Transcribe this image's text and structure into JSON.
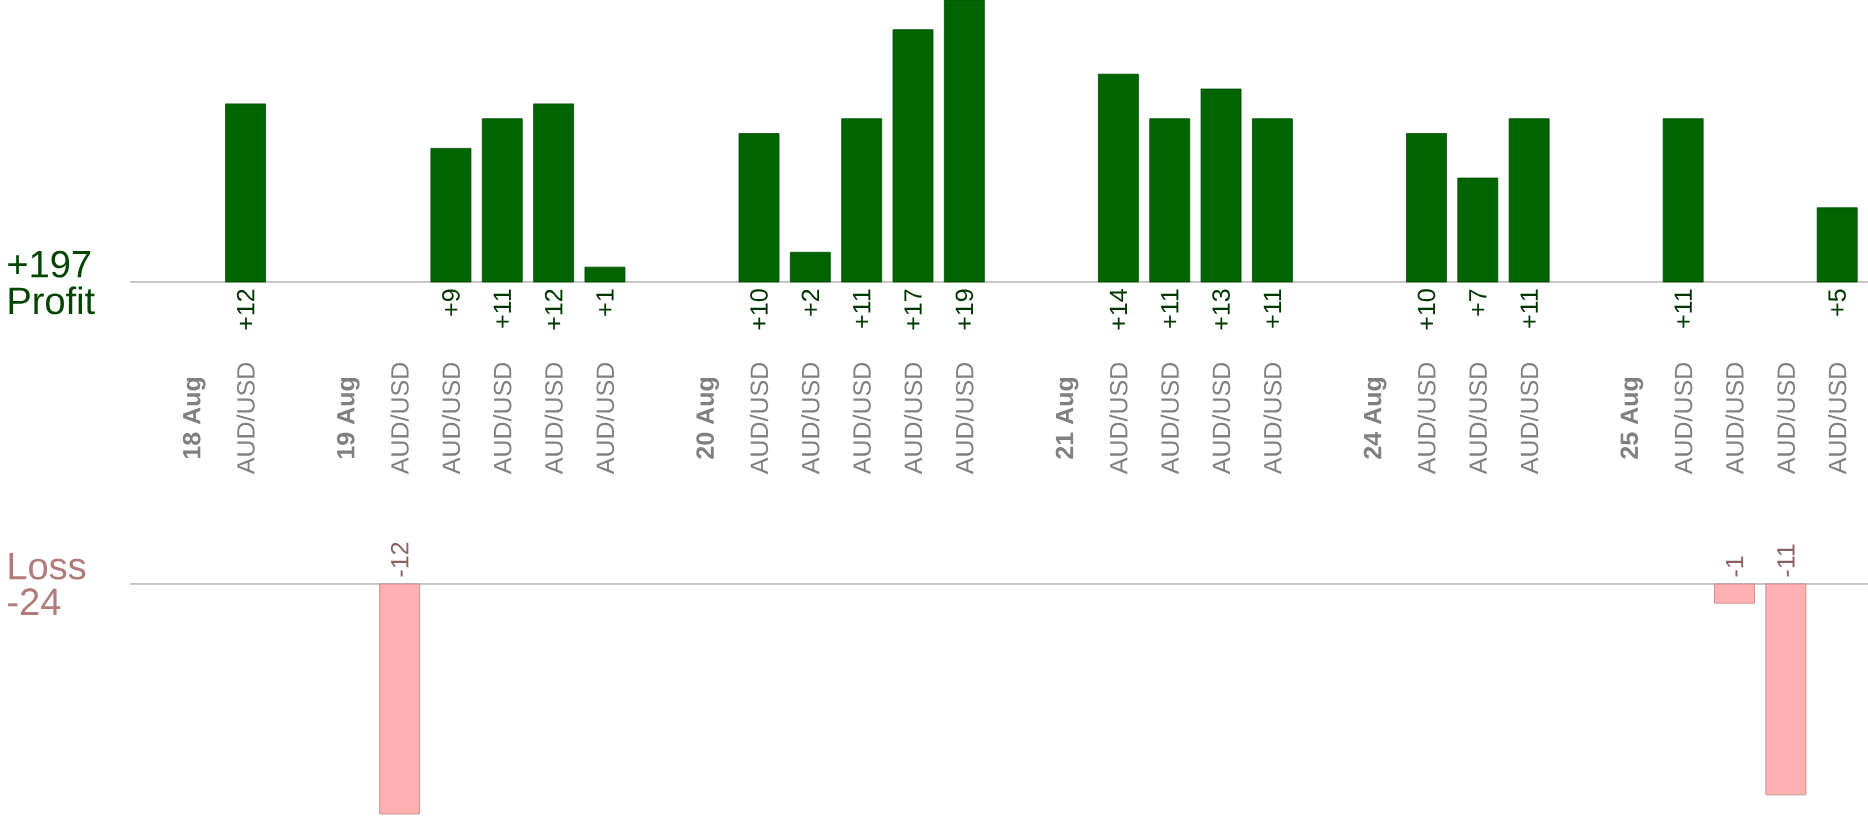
{
  "chart_data": [
    {
      "type": "bar",
      "categories": [
        null,
        "**18 Aug**",
        "AUD/USD",
        null,
        "**19 Aug**",
        "AUD/USD",
        "AUD/USD",
        "AUD/USD",
        "AUD/USD",
        "AUD/USD",
        null,
        "**20 Aug**",
        "AUD/USD",
        "AUD/USD",
        "AUD/USD",
        "AUD/USD",
        "AUD/USD",
        null,
        "**21 Aug**",
        "AUD/USD",
        "AUD/USD",
        "AUD/USD",
        "AUD/USD",
        null,
        "**24 Aug**",
        "AUD/USD",
        "AUD/USD",
        "AUD/USD",
        null,
        "**25 Aug**",
        "AUD/USD",
        "AUD/USD",
        "AUD/USD",
        "AUD/USD"
      ],
      "series": [
        {
          "color": "#006400",
          "values": [
            null,
            null,
            12,
            null,
            null,
            null,
            9,
            11,
            12,
            1,
            null,
            null,
            10,
            2,
            11,
            17,
            19,
            null,
            null,
            14,
            11,
            13,
            11,
            null,
            null,
            10,
            7,
            11,
            null,
            null,
            11,
            null,
            null,
            5
          ],
          "value_labels": [
            null,
            null,
            "+12",
            null,
            null,
            null,
            "+9",
            "+11",
            "+12",
            "+1",
            null,
            null,
            "+10",
            "+2",
            "+11",
            "+17",
            "+19",
            null,
            null,
            "+14",
            "+11",
            "+13",
            "+11",
            null,
            null,
            "+10",
            "+7",
            "+11",
            null,
            null,
            "+11",
            null,
            null,
            "+5"
          ]
        }
      ],
      "tick_labels": "x",
      "annotations": [
        "+197",
        "Profit"
      ]
    },
    {
      "type": "bar",
      "categories": [
        null,
        null,
        null,
        null,
        null,
        null,
        null,
        null,
        null,
        null,
        null,
        null,
        null,
        null,
        null,
        null,
        null,
        null,
        null,
        null,
        null,
        null,
        null,
        null,
        null,
        null,
        null,
        null,
        null,
        null,
        null,
        null,
        null,
        null
      ],
      "series": [
        {
          "color": "#ffb0b0",
          "values": [
            null,
            null,
            null,
            null,
            null,
            -12,
            null,
            null,
            null,
            null,
            null,
            null,
            null,
            null,
            null,
            null,
            null,
            null,
            null,
            null,
            null,
            null,
            null,
            null,
            null,
            null,
            null,
            null,
            null,
            null,
            null,
            -1,
            -11,
            null
          ],
          "value_labels": [
            null,
            null,
            null,
            null,
            null,
            "-12",
            null,
            null,
            null,
            null,
            null,
            null,
            null,
            null,
            null,
            null,
            null,
            null,
            null,
            null,
            null,
            null,
            null,
            null,
            null,
            null,
            null,
            null,
            null,
            null,
            null,
            "-1",
            "-11",
            null
          ]
        }
      ],
      "annotations": [
        "Loss",
        "-24"
      ]
    }
  ]
}
